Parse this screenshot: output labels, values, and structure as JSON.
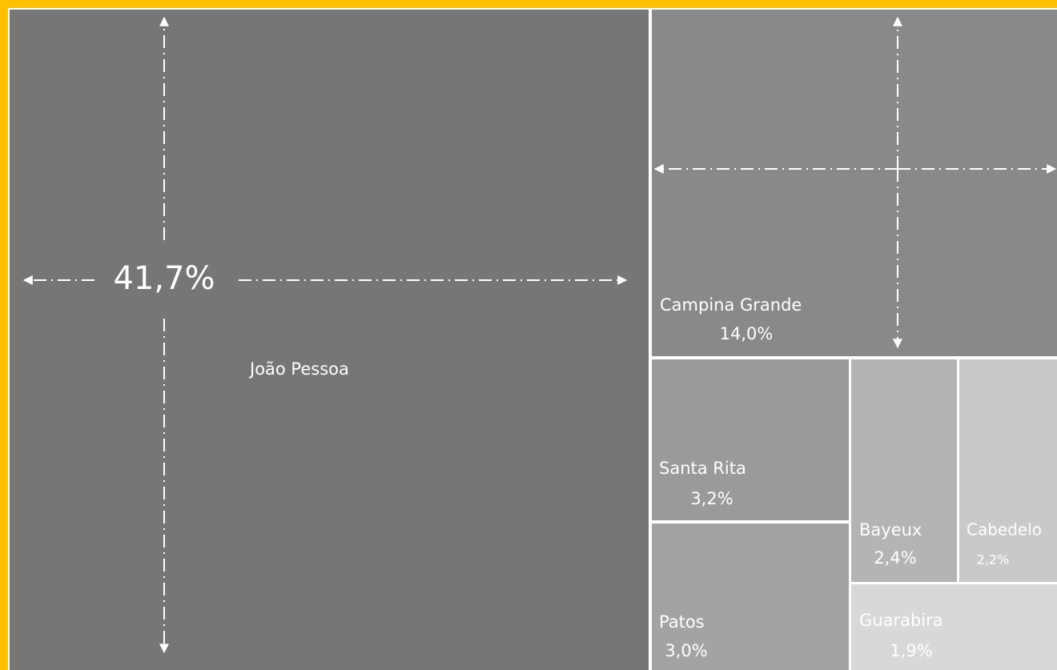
{
  "chart_data": {
    "type": "treemap",
    "categories": [
      "João Pessoa",
      "Campina Grande",
      "Santa Rita",
      "Patos",
      "Bayeux",
      "Cabedelo",
      "Guarabira"
    ],
    "values": [
      41.7,
      14.0,
      3.2,
      3.0,
      2.4,
      2.2,
      1.9
    ],
    "value_labels": [
      "41,7%",
      "14,0%",
      "3,2%",
      "3,0%",
      "2,4%",
      "2,2%",
      "1,9%"
    ],
    "colors": [
      "#767676",
      "#898989",
      "#9a9a9a",
      "#a3a3a3",
      "#b4b4b4",
      "#c9c9c9",
      "#d8d8d8"
    ]
  }
}
